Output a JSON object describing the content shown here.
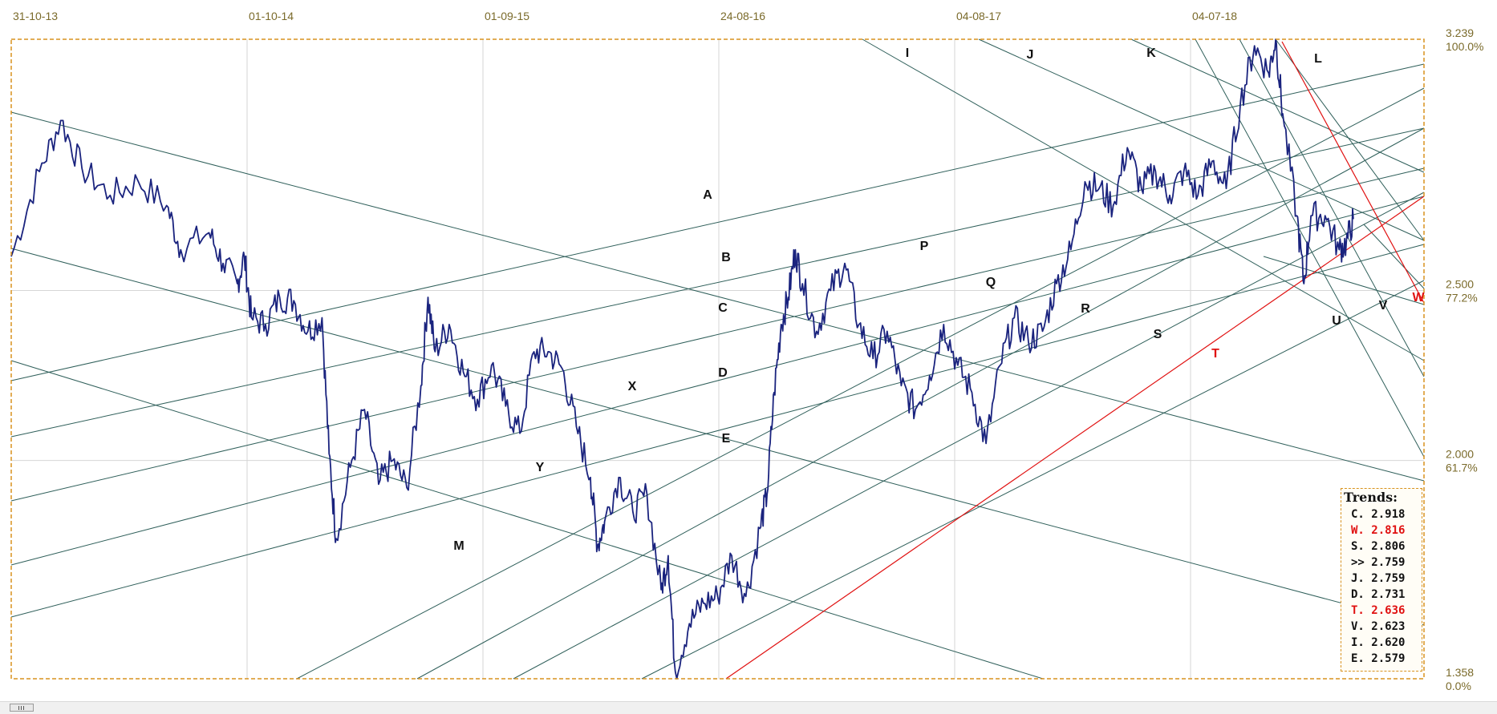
{
  "chart_data": {
    "type": "line",
    "x_ticks": [
      "31-10-13",
      "01-10-14",
      "01-09-15",
      "24-08-16",
      "04-08-17",
      "04-07-18"
    ],
    "y_axis": [
      {
        "value": "3.239",
        "pct": "100.0%"
      },
      {
        "value": "2.500",
        "pct": "77.2%"
      },
      {
        "value": "2.000",
        "pct": "61.7%"
      },
      {
        "value": "1.358",
        "pct": "0.0%"
      }
    ],
    "ylim": [
      1.358,
      3.239
    ],
    "grid": true,
    "series": [
      {
        "color": "#1a237e",
        "approx_points": [
          [
            0.0,
            2.6
          ],
          [
            0.02,
            2.85
          ],
          [
            0.035,
            3.0
          ],
          [
            0.05,
            2.86
          ],
          [
            0.07,
            2.78
          ],
          [
            0.09,
            2.82
          ],
          [
            0.11,
            2.75
          ],
          [
            0.12,
            2.62
          ],
          [
            0.14,
            2.67
          ],
          [
            0.15,
            2.58
          ],
          [
            0.16,
            2.52
          ],
          [
            0.165,
            2.6
          ],
          [
            0.17,
            2.42
          ],
          [
            0.18,
            2.4
          ],
          [
            0.19,
            2.48
          ],
          [
            0.2,
            2.47
          ],
          [
            0.21,
            2.38
          ],
          [
            0.22,
            2.42
          ],
          [
            0.225,
            2.02
          ],
          [
            0.23,
            1.77
          ],
          [
            0.24,
            1.98
          ],
          [
            0.25,
            2.15
          ],
          [
            0.26,
            1.93
          ],
          [
            0.27,
            2.0
          ],
          [
            0.28,
            1.92
          ],
          [
            0.29,
            2.22
          ],
          [
            0.295,
            2.48
          ],
          [
            0.3,
            2.32
          ],
          [
            0.31,
            2.4
          ],
          [
            0.32,
            2.26
          ],
          [
            0.33,
            2.18
          ],
          [
            0.34,
            2.28
          ],
          [
            0.35,
            2.16
          ],
          [
            0.36,
            2.08
          ],
          [
            0.37,
            2.32
          ],
          [
            0.38,
            2.32
          ],
          [
            0.39,
            2.27
          ],
          [
            0.4,
            2.1
          ],
          [
            0.41,
            1.95
          ],
          [
            0.415,
            1.75
          ],
          [
            0.42,
            1.82
          ],
          [
            0.43,
            1.95
          ],
          [
            0.44,
            1.85
          ],
          [
            0.45,
            1.9
          ],
          [
            0.46,
            1.62
          ],
          [
            0.465,
            1.72
          ],
          [
            0.47,
            1.38
          ],
          [
            0.48,
            1.52
          ],
          [
            0.49,
            1.58
          ],
          [
            0.5,
            1.6
          ],
          [
            0.51,
            1.72
          ],
          [
            0.52,
            1.6
          ],
          [
            0.53,
            1.8
          ],
          [
            0.535,
            1.9
          ],
          [
            0.54,
            2.2
          ],
          [
            0.545,
            2.4
          ],
          [
            0.55,
            2.48
          ],
          [
            0.555,
            2.62
          ],
          [
            0.56,
            2.52
          ],
          [
            0.57,
            2.38
          ],
          [
            0.58,
            2.5
          ],
          [
            0.59,
            2.58
          ],
          [
            0.6,
            2.4
          ],
          [
            0.61,
            2.3
          ],
          [
            0.62,
            2.38
          ],
          [
            0.63,
            2.22
          ],
          [
            0.64,
            2.15
          ],
          [
            0.65,
            2.25
          ],
          [
            0.66,
            2.4
          ],
          [
            0.67,
            2.28
          ],
          [
            0.68,
            2.2
          ],
          [
            0.69,
            2.05
          ],
          [
            0.7,
            2.28
          ],
          [
            0.71,
            2.42
          ],
          [
            0.72,
            2.35
          ],
          [
            0.73,
            2.38
          ],
          [
            0.74,
            2.52
          ],
          [
            0.75,
            2.62
          ],
          [
            0.76,
            2.82
          ],
          [
            0.77,
            2.8
          ],
          [
            0.78,
            2.75
          ],
          [
            0.79,
            2.92
          ],
          [
            0.8,
            2.8
          ],
          [
            0.81,
            2.85
          ],
          [
            0.82,
            2.78
          ],
          [
            0.83,
            2.85
          ],
          [
            0.84,
            2.78
          ],
          [
            0.85,
            2.88
          ],
          [
            0.86,
            2.8
          ],
          [
            0.87,
            3.05
          ],
          [
            0.88,
            3.22
          ],
          [
            0.89,
            3.14
          ],
          [
            0.895,
            3.24
          ],
          [
            0.9,
            3.02
          ],
          [
            0.91,
            2.72
          ],
          [
            0.915,
            2.52
          ],
          [
            0.92,
            2.72
          ],
          [
            0.93,
            2.72
          ],
          [
            0.94,
            2.62
          ],
          [
            0.945,
            2.64
          ],
          [
            0.95,
            2.71
          ]
        ]
      }
    ],
    "trendline_labels": [
      {
        "label": "A",
        "color": "#111111"
      },
      {
        "label": "B",
        "color": "#111111"
      },
      {
        "label": "C",
        "color": "#111111"
      },
      {
        "label": "D",
        "color": "#111111"
      },
      {
        "label": "E",
        "color": "#111111"
      },
      {
        "label": "I",
        "color": "#111111"
      },
      {
        "label": "J",
        "color": "#111111"
      },
      {
        "label": "K",
        "color": "#111111"
      },
      {
        "label": "L",
        "color": "#111111"
      },
      {
        "label": "M",
        "color": "#111111"
      },
      {
        "label": "P",
        "color": "#111111"
      },
      {
        "label": "Q",
        "color": "#111111"
      },
      {
        "label": "R",
        "color": "#111111"
      },
      {
        "label": "S",
        "color": "#111111"
      },
      {
        "label": "T",
        "color": "#e01010"
      },
      {
        "label": "U",
        "color": "#111111"
      },
      {
        "label": "V",
        "color": "#111111"
      },
      {
        "label": "W",
        "color": "#e01010"
      },
      {
        "label": "X",
        "color": "#111111"
      },
      {
        "label": "Y",
        "color": "#111111"
      }
    ]
  },
  "trends": {
    "title": "Trends:",
    "rows": [
      {
        "name": "C.",
        "value": "2.918",
        "color": "#111111"
      },
      {
        "name": "W.",
        "value": "2.816",
        "color": "#e01010"
      },
      {
        "name": "S.",
        "value": "2.806",
        "color": "#111111"
      },
      {
        "name": ">>",
        "value": "2.759",
        "color": "#111111"
      },
      {
        "name": "J.",
        "value": "2.759",
        "color": "#111111"
      },
      {
        "name": "D.",
        "value": "2.731",
        "color": "#111111"
      },
      {
        "name": "T.",
        "value": "2.636",
        "color": "#e01010"
      },
      {
        "name": "V.",
        "value": "2.623",
        "color": "#111111"
      },
      {
        "name": "I.",
        "value": "2.620",
        "color": "#111111"
      },
      {
        "name": "E.",
        "value": "2.579",
        "color": "#111111"
      }
    ]
  },
  "colors": {
    "price_line": "#1a237e",
    "trend_line": "#2f5f5a",
    "red_line": "#e01010",
    "axis_text": "#7a6a2a",
    "frame": "#d8921f",
    "grid": "#d6d6d6"
  }
}
